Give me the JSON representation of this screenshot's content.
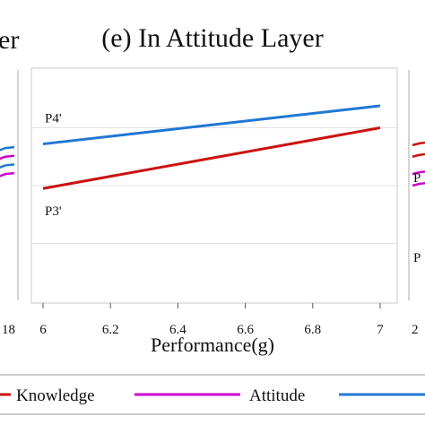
{
  "chart_data": [
    {
      "type": "line",
      "title": "(e) In Attitude Layer",
      "xlabel": "Performance(g)",
      "ylabel": "",
      "xlim": [
        6,
        7
      ],
      "ylim": [
        0,
        4
      ],
      "xticks": [
        "6",
        "6.2",
        "6.4",
        "6.6",
        "6.8",
        "7"
      ],
      "grid": true,
      "series": [
        {
          "name": "P4'",
          "color": "#1f77d4",
          "x": [
            6,
            7
          ],
          "y": [
            2.72,
            3.38
          ]
        },
        {
          "name": "P3'",
          "color": "#cc1111",
          "x": [
            6,
            7
          ],
          "y": [
            1.95,
            3.0
          ]
        }
      ]
    }
  ],
  "left_panel": {
    "title_fragment": "er",
    "tick_fragment": "18",
    "lines": [
      {
        "color": "#cc00cc",
        "y": 2.2
      },
      {
        "color": "#1f77d4",
        "y": 2.35
      },
      {
        "color": "#cc00cc",
        "y": 2.5
      },
      {
        "color": "#1f77d4",
        "y": 2.65
      }
    ]
  },
  "right_panel": {
    "tick_fragment": "2",
    "label_fragments": [
      "P",
      "P"
    ],
    "lines": [
      {
        "color": "#cc00cc",
        "y": 2.0
      },
      {
        "color": "#cc00cc",
        "y": 2.2
      },
      {
        "color": "#cc1111",
        "y": 2.5
      },
      {
        "color": "#cc1111",
        "y": 2.7
      }
    ]
  },
  "legend": {
    "placement": "bottom",
    "items": [
      {
        "label": "Knowledge",
        "color": "#cc1111"
      },
      {
        "label": "Attitude",
        "color": "#cc00cc"
      },
      {
        "label": "",
        "color": "#1f77d4"
      }
    ]
  }
}
